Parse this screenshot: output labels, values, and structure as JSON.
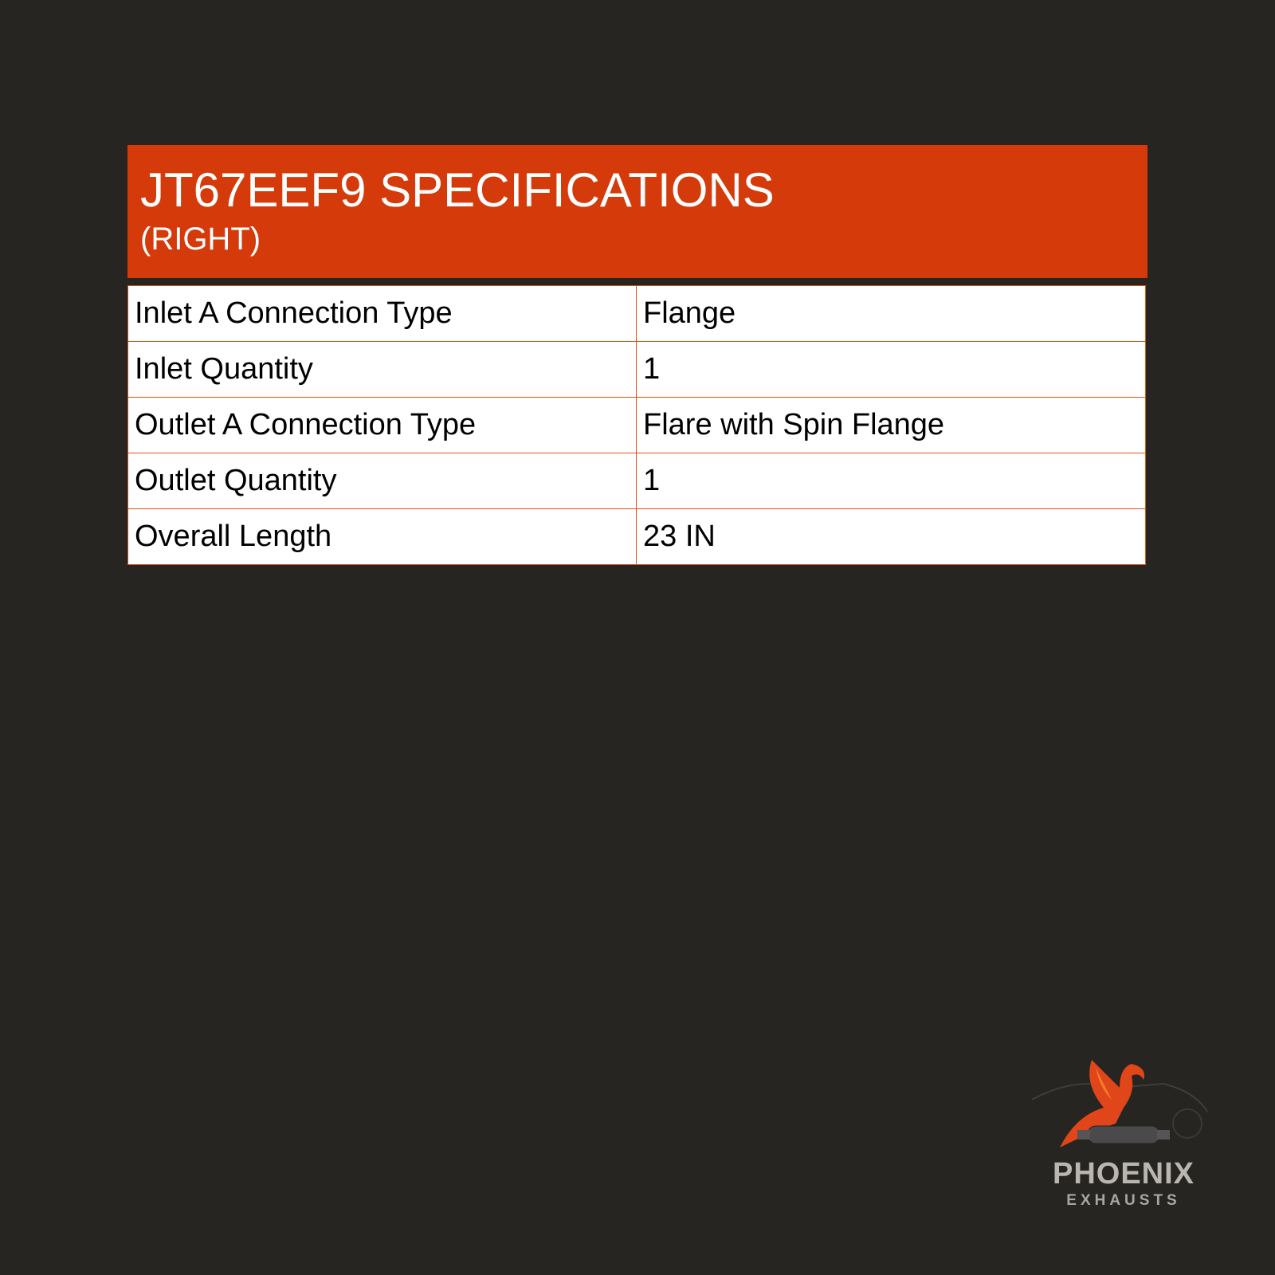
{
  "header": {
    "title": "JT67EEF9 SPECIFICATIONS",
    "subtitle": "(RIGHT)"
  },
  "specs": [
    {
      "label": "Inlet A Connection Type",
      "value": "Flange"
    },
    {
      "label": "Inlet Quantity",
      "value": "1"
    },
    {
      "label": "Outlet A Connection Type",
      "value": "Flare with Spin Flange"
    },
    {
      "label": "Outlet Quantity",
      "value": "1"
    },
    {
      "label": "Overall Length",
      "value": "23 IN"
    }
  ],
  "logo": {
    "name": "PHOENIX",
    "tagline": "EXHAUSTS"
  },
  "colors": {
    "background": "#262521",
    "accent": "#d43a0a",
    "border": "#d9541f"
  }
}
